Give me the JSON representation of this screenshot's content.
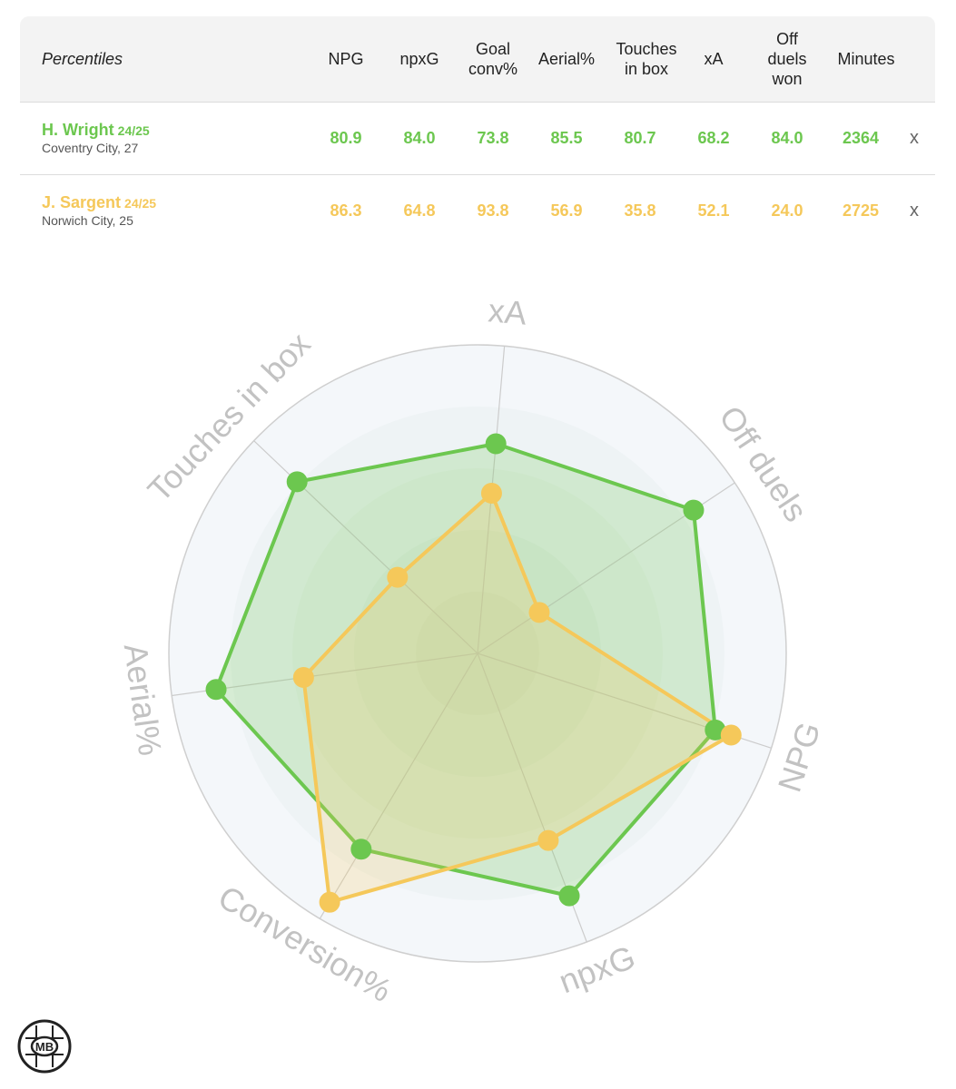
{
  "table": {
    "header_label": "Percentiles",
    "columns": [
      "NPG",
      "npxG",
      "Goal\nconv%",
      "Aerial%",
      "Touches\nin box",
      "xA",
      "Off\nduels\nwon",
      "Minutes"
    ],
    "remove_label": "x",
    "players": [
      {
        "name": "H. Wright",
        "season": "24/25",
        "team_age": "Coventry City, 27",
        "color": "#6cc74f",
        "values": [
          "80.9",
          "84.0",
          "73.8",
          "85.5",
          "80.7",
          "68.2",
          "84.0",
          "2364"
        ]
      },
      {
        "name": "J. Sargent",
        "season": "24/25",
        "team_age": "Norwich City, 25",
        "color": "#f5c85a",
        "values": [
          "86.3",
          "64.8",
          "93.8",
          "56.9",
          "35.8",
          "52.1",
          "24.0",
          "2725"
        ]
      }
    ]
  },
  "chart_data": {
    "type": "radar",
    "axes": [
      "xA",
      "Off duels",
      "NPG",
      "npxG",
      "Conversion%",
      "Aerial%",
      "Touches in box"
    ],
    "range": [
      0,
      100
    ],
    "series": [
      {
        "name": "H. Wright",
        "color": "#6cc74f",
        "values": [
          68.2,
          84.0,
          80.9,
          84.0,
          73.8,
          85.5,
          80.7
        ]
      },
      {
        "name": "J. Sargent",
        "color": "#f5c85a",
        "values": [
          52.1,
          24.0,
          86.3,
          64.8,
          93.8,
          56.9,
          35.8
        ]
      }
    ]
  },
  "logo": {
    "text": "MB"
  }
}
